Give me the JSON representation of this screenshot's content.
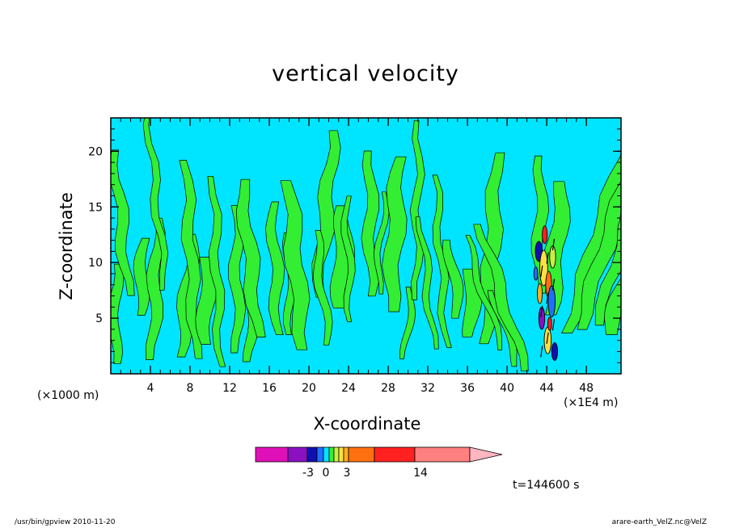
{
  "chart_data": {
    "type": "heatmap",
    "subtype": "filled-contour",
    "title": "vertical velocity",
    "xlabel": "X-coordinate",
    "ylabel": "Z-coordinate",
    "x_unit_left": "(×1000 m)",
    "x_unit_right": "(×1E4 m)",
    "xlim": [
      0,
      51.5
    ],
    "ylim": [
      0,
      23
    ],
    "x_ticks": [
      4,
      8,
      12,
      16,
      20,
      24,
      28,
      32,
      36,
      40,
      44,
      48
    ],
    "x_tick_labels": [
      "4",
      "8",
      "12",
      "16",
      "20",
      "24",
      "28",
      "32",
      "36",
      "40",
      "44",
      "48"
    ],
    "y_ticks": [
      5,
      10,
      15,
      20
    ],
    "y_tick_labels": [
      "5",
      "10",
      "15",
      "20"
    ],
    "time_label": "t=144600 s",
    "background_color": "#00e5ff",
    "positive_color": "#33ee33",
    "colorbar": {
      "colors": [
        "#e010b8",
        "#8a10c0",
        "#1010b0",
        "#2070ff",
        "#00e5ff",
        "#33ee33",
        "#c8f040",
        "#ffe040",
        "#ffb020",
        "#ff7010",
        "#ff2020",
        "#ff8080",
        "#ffb6c1"
      ],
      "tick_labels": [
        "-3",
        "0",
        "3",
        "14"
      ],
      "tick_values": [
        -3,
        0,
        3,
        14
      ]
    },
    "features": [
      {
        "name": "positive-updraft-bands",
        "x_range": [
          0,
          51.5
        ],
        "z_range": [
          0,
          23
        ]
      },
      {
        "name": "strong-convective-core",
        "x_center": 44,
        "z_range": [
          1.5,
          13.5
        ],
        "min_value": -3,
        "max_value": 14
      }
    ]
  },
  "footer": {
    "left": "/usr/bin/gpview   2010-11-20",
    "right": "arare-earth_VelZ.nc@VelZ"
  }
}
